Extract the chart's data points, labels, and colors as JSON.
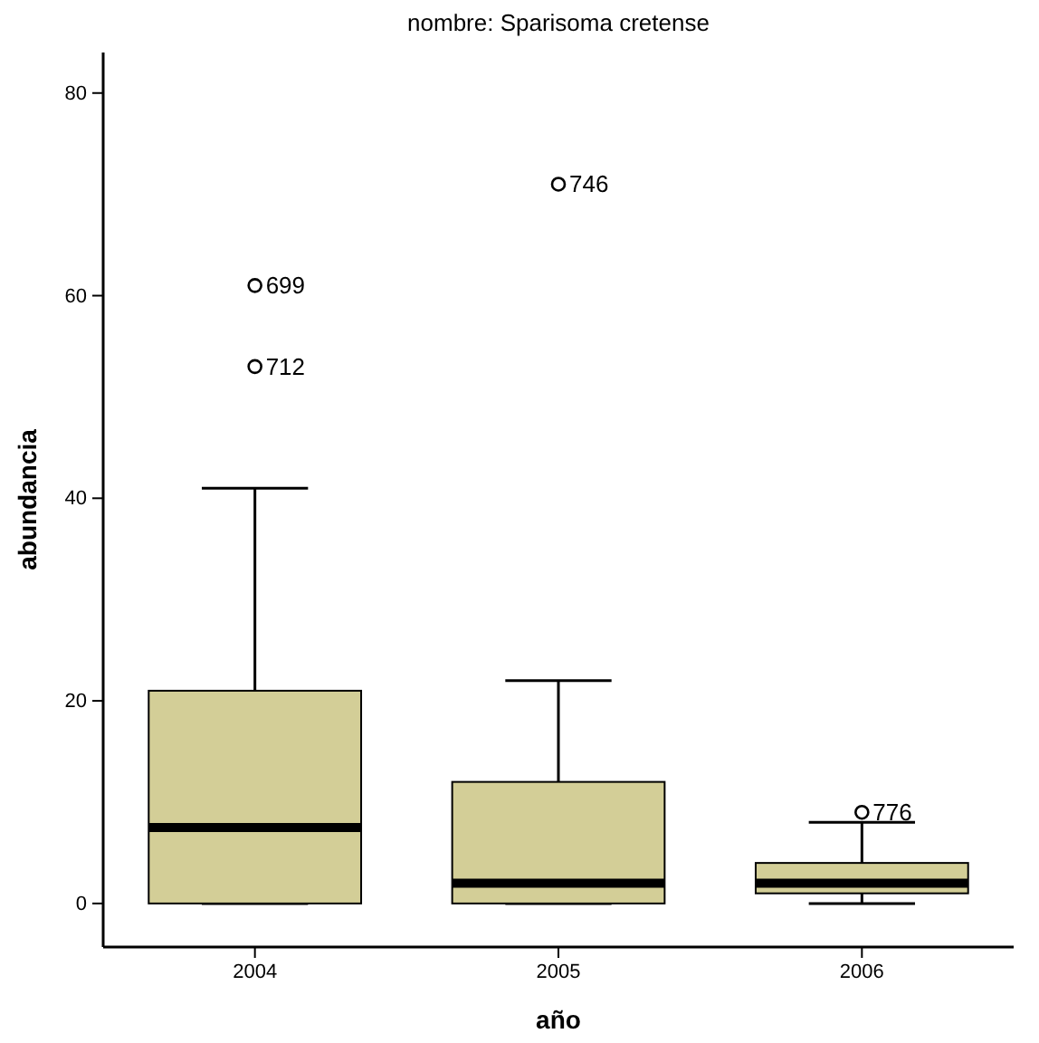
{
  "chart_data": {
    "type": "box",
    "title": "nombre: Sparisoma cretense",
    "xlabel": "año",
    "ylabel": "abundancia",
    "categories": [
      "2004",
      "2005",
      "2006"
    ],
    "ylim": [
      -4.3,
      84
    ],
    "yticks": [
      0,
      20,
      40,
      60,
      80
    ],
    "grid": false,
    "series": [
      {
        "color": "#d3ce97",
        "boxes": [
          {
            "low": 0,
            "q1": 0,
            "median": 7.5,
            "q3": 21,
            "high": 41,
            "outliers": [
              61,
              53
            ]
          },
          {
            "low": 0,
            "q1": 0,
            "median": 2,
            "q3": 12,
            "high": 22,
            "outliers": [
              71
            ]
          },
          {
            "low": 0,
            "q1": 1,
            "median": 2,
            "q3": 4,
            "high": 8,
            "outliers": [
              9
            ]
          }
        ]
      }
    ],
    "annotations": [
      "699",
      "712",
      "746",
      "776"
    ]
  }
}
